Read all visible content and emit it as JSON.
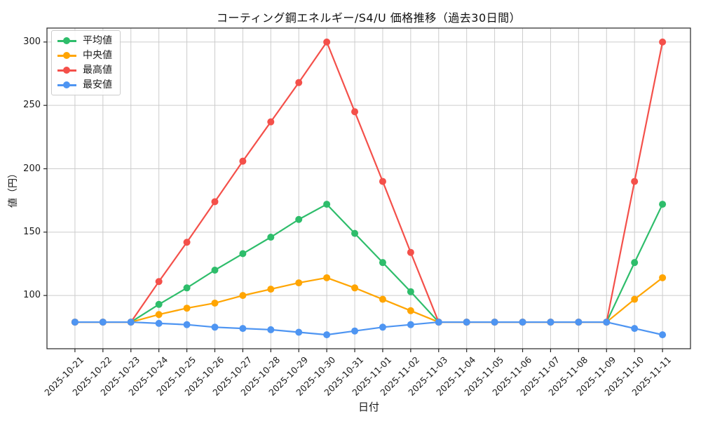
{
  "chart_data": {
    "type": "line",
    "title": "コーティング鋼エネルギー/S4/U 価格推移（過去30日間）",
    "xlabel": "日付",
    "ylabel": "値（円）",
    "x": [
      "2025-10-21",
      "2025-10-22",
      "2025-10-23",
      "2025-10-24",
      "2025-10-25",
      "2025-10-26",
      "2025-10-27",
      "2025-10-28",
      "2025-10-29",
      "2025-10-30",
      "2025-10-31",
      "2025-11-01",
      "2025-11-02",
      "2025-11-03",
      "2025-11-04",
      "2025-11-05",
      "2025-11-06",
      "2025-11-07",
      "2025-11-08",
      "2025-11-09",
      "2025-11-10",
      "2025-11-11"
    ],
    "series": [
      {
        "name": "平均値",
        "color": "#2ebd6b",
        "values": [
          79,
          79,
          79,
          93,
          106,
          120,
          133,
          146,
          160,
          172,
          149,
          126,
          103,
          79,
          79,
          79,
          79,
          79,
          79,
          79,
          126,
          172
        ]
      },
      {
        "name": "中央値",
        "color": "#ffa502",
        "values": [
          79,
          79,
          79,
          85,
          90,
          94,
          100,
          105,
          110,
          114,
          106,
          97,
          88,
          79,
          79,
          79,
          79,
          79,
          79,
          79,
          97,
          114
        ]
      },
      {
        "name": "最高値",
        "color": "#f4504a",
        "values": [
          79,
          79,
          79,
          111,
          142,
          174,
          206,
          237,
          268,
          300,
          245,
          190,
          134,
          79,
          79,
          79,
          79,
          79,
          79,
          79,
          190,
          300
        ]
      },
      {
        "name": "最安値",
        "color": "#4e95f2",
        "values": [
          79,
          79,
          79,
          78,
          77,
          75,
          74,
          73,
          71,
          69,
          72,
          75,
          77,
          79,
          79,
          79,
          79,
          79,
          79,
          79,
          74,
          69
        ]
      }
    ],
    "yticks": [
      100,
      150,
      200,
      250,
      300
    ],
    "ylim": [
      58,
      311
    ],
    "grid": true,
    "legend_position": "upper-left",
    "colors": {
      "grid": "#cccccc",
      "spine": "#262626",
      "text": "#1a1a1a",
      "background": "#ffffff"
    }
  }
}
